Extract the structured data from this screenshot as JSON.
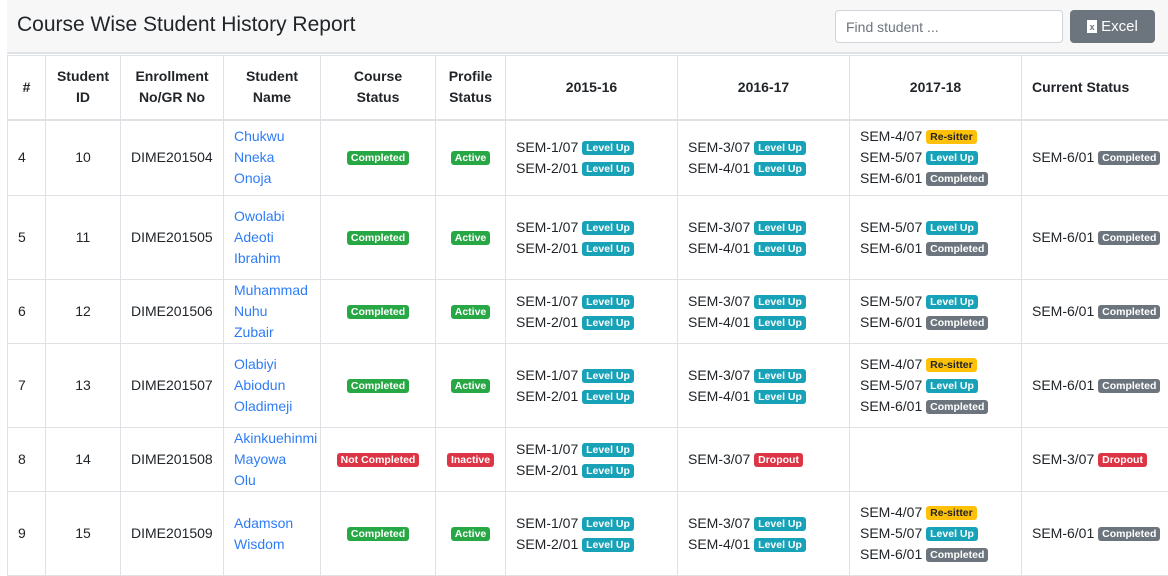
{
  "header": {
    "title": "Course Wise Student History Report",
    "search_placeholder": "Find student ...",
    "excel_label": "Excel"
  },
  "colors": {
    "level_up": "#17a2b8",
    "completed": "#6c757d",
    "re_sitter": "#ffc107",
    "dropout": "#dc3545",
    "course_completed": "#28a745",
    "active": "#28a745",
    "not_completed": "#dc3545",
    "inactive": "#dc3545"
  },
  "columns": [
    "#",
    "Student ID",
    "Enrollment No/GR No",
    "Student Name",
    "Course Status",
    "Profile Status",
    "2015-16",
    "2016-17",
    "2017-18",
    "Current Status"
  ],
  "rows": [
    {
      "n": "4",
      "id": "10",
      "enroll": "DIME201504",
      "name": "Chukwu Nneka Onoja",
      "course": {
        "label": "Completed",
        "type": "course_completed"
      },
      "profile": {
        "label": "Active",
        "type": "active"
      },
      "y1": [
        {
          "sem": "SEM-1/07",
          "badge": "Level Up",
          "type": "level_up"
        },
        {
          "sem": "SEM-2/01",
          "badge": "Level Up",
          "type": "level_up"
        }
      ],
      "y2": [
        {
          "sem": "SEM-3/07",
          "badge": "Level Up",
          "type": "level_up"
        },
        {
          "sem": "SEM-4/01",
          "badge": "Level Up",
          "type": "level_up"
        }
      ],
      "y3": [
        {
          "sem": "SEM-4/07",
          "badge": "Re-sitter",
          "type": "re_sitter"
        },
        {
          "sem": "SEM-5/07",
          "badge": "Level Up",
          "type": "level_up"
        },
        {
          "sem": "SEM-6/01",
          "badge": "Completed",
          "type": "completed"
        }
      ],
      "current": [
        {
          "sem": "SEM-6/01",
          "badge": "Completed",
          "type": "completed"
        }
      ]
    },
    {
      "n": "5",
      "id": "11",
      "enroll": "DIME201505",
      "name": "Owolabi Adeoti Ibrahim",
      "course": {
        "label": "Completed",
        "type": "course_completed"
      },
      "profile": {
        "label": "Active",
        "type": "active"
      },
      "y1": [
        {
          "sem": "SEM-1/07",
          "badge": "Level Up",
          "type": "level_up"
        },
        {
          "sem": "SEM-2/01",
          "badge": "Level Up",
          "type": "level_up"
        }
      ],
      "y2": [
        {
          "sem": "SEM-3/07",
          "badge": "Level Up",
          "type": "level_up"
        },
        {
          "sem": "SEM-4/01",
          "badge": "Level Up",
          "type": "level_up"
        }
      ],
      "y3": [
        {
          "sem": "SEM-5/07",
          "badge": "Level Up",
          "type": "level_up"
        },
        {
          "sem": "SEM-6/01",
          "badge": "Completed",
          "type": "completed"
        }
      ],
      "current": [
        {
          "sem": "SEM-6/01",
          "badge": "Completed",
          "type": "completed"
        }
      ]
    },
    {
      "n": "6",
      "id": "12",
      "enroll": "DIME201506",
      "name": "Muhammad Nuhu Zubair",
      "course": {
        "label": "Completed",
        "type": "course_completed"
      },
      "profile": {
        "label": "Active",
        "type": "active"
      },
      "y1": [
        {
          "sem": "SEM-1/07",
          "badge": "Level Up",
          "type": "level_up"
        },
        {
          "sem": "SEM-2/01",
          "badge": "Level Up",
          "type": "level_up"
        }
      ],
      "y2": [
        {
          "sem": "SEM-3/07",
          "badge": "Level Up",
          "type": "level_up"
        },
        {
          "sem": "SEM-4/01",
          "badge": "Level Up",
          "type": "level_up"
        }
      ],
      "y3": [
        {
          "sem": "SEM-5/07",
          "badge": "Level Up",
          "type": "level_up"
        },
        {
          "sem": "SEM-6/01",
          "badge": "Completed",
          "type": "completed"
        }
      ],
      "current": [
        {
          "sem": "SEM-6/01",
          "badge": "Completed",
          "type": "completed"
        }
      ]
    },
    {
      "n": "7",
      "id": "13",
      "enroll": "DIME201507",
      "name": "Olabiyi Abiodun Oladimeji",
      "course": {
        "label": "Completed",
        "type": "course_completed"
      },
      "profile": {
        "label": "Active",
        "type": "active"
      },
      "y1": [
        {
          "sem": "SEM-1/07",
          "badge": "Level Up",
          "type": "level_up"
        },
        {
          "sem": "SEM-2/01",
          "badge": "Level Up",
          "type": "level_up"
        }
      ],
      "y2": [
        {
          "sem": "SEM-3/07",
          "badge": "Level Up",
          "type": "level_up"
        },
        {
          "sem": "SEM-4/01",
          "badge": "Level Up",
          "type": "level_up"
        }
      ],
      "y3": [
        {
          "sem": "SEM-4/07",
          "badge": "Re-sitter",
          "type": "re_sitter"
        },
        {
          "sem": "SEM-5/07",
          "badge": "Level Up",
          "type": "level_up"
        },
        {
          "sem": "SEM-6/01",
          "badge": "Completed",
          "type": "completed"
        }
      ],
      "current": [
        {
          "sem": "SEM-6/01",
          "badge": "Completed",
          "type": "completed"
        }
      ]
    },
    {
      "n": "8",
      "id": "14",
      "enroll": "DIME201508",
      "name": "Akinkuehinmi Mayowa Olu",
      "course": {
        "label": "Not Completed",
        "type": "not_completed"
      },
      "profile": {
        "label": "Inactive",
        "type": "inactive"
      },
      "y1": [
        {
          "sem": "SEM-1/07",
          "badge": "Level Up",
          "type": "level_up"
        },
        {
          "sem": "SEM-2/01",
          "badge": "Level Up",
          "type": "level_up"
        }
      ],
      "y2": [
        {
          "sem": "SEM-3/07",
          "badge": "Dropout",
          "type": "dropout"
        }
      ],
      "y3": [],
      "current": [
        {
          "sem": "SEM-3/07",
          "badge": "Dropout",
          "type": "dropout"
        }
      ]
    },
    {
      "n": "9",
      "id": "15",
      "enroll": "DIME201509",
      "name": "Adamson Wisdom",
      "course": {
        "label": "Completed",
        "type": "course_completed"
      },
      "profile": {
        "label": "Active",
        "type": "active"
      },
      "y1": [
        {
          "sem": "SEM-1/07",
          "badge": "Level Up",
          "type": "level_up"
        },
        {
          "sem": "SEM-2/01",
          "badge": "Level Up",
          "type": "level_up"
        }
      ],
      "y2": [
        {
          "sem": "SEM-3/07",
          "badge": "Level Up",
          "type": "level_up"
        },
        {
          "sem": "SEM-4/01",
          "badge": "Level Up",
          "type": "level_up"
        }
      ],
      "y3": [
        {
          "sem": "SEM-4/07",
          "badge": "Re-sitter",
          "type": "re_sitter"
        },
        {
          "sem": "SEM-5/07",
          "badge": "Level Up",
          "type": "level_up"
        },
        {
          "sem": "SEM-6/01",
          "badge": "Completed",
          "type": "completed"
        }
      ],
      "current": [
        {
          "sem": "SEM-6/01",
          "badge": "Completed",
          "type": "completed"
        }
      ]
    }
  ]
}
